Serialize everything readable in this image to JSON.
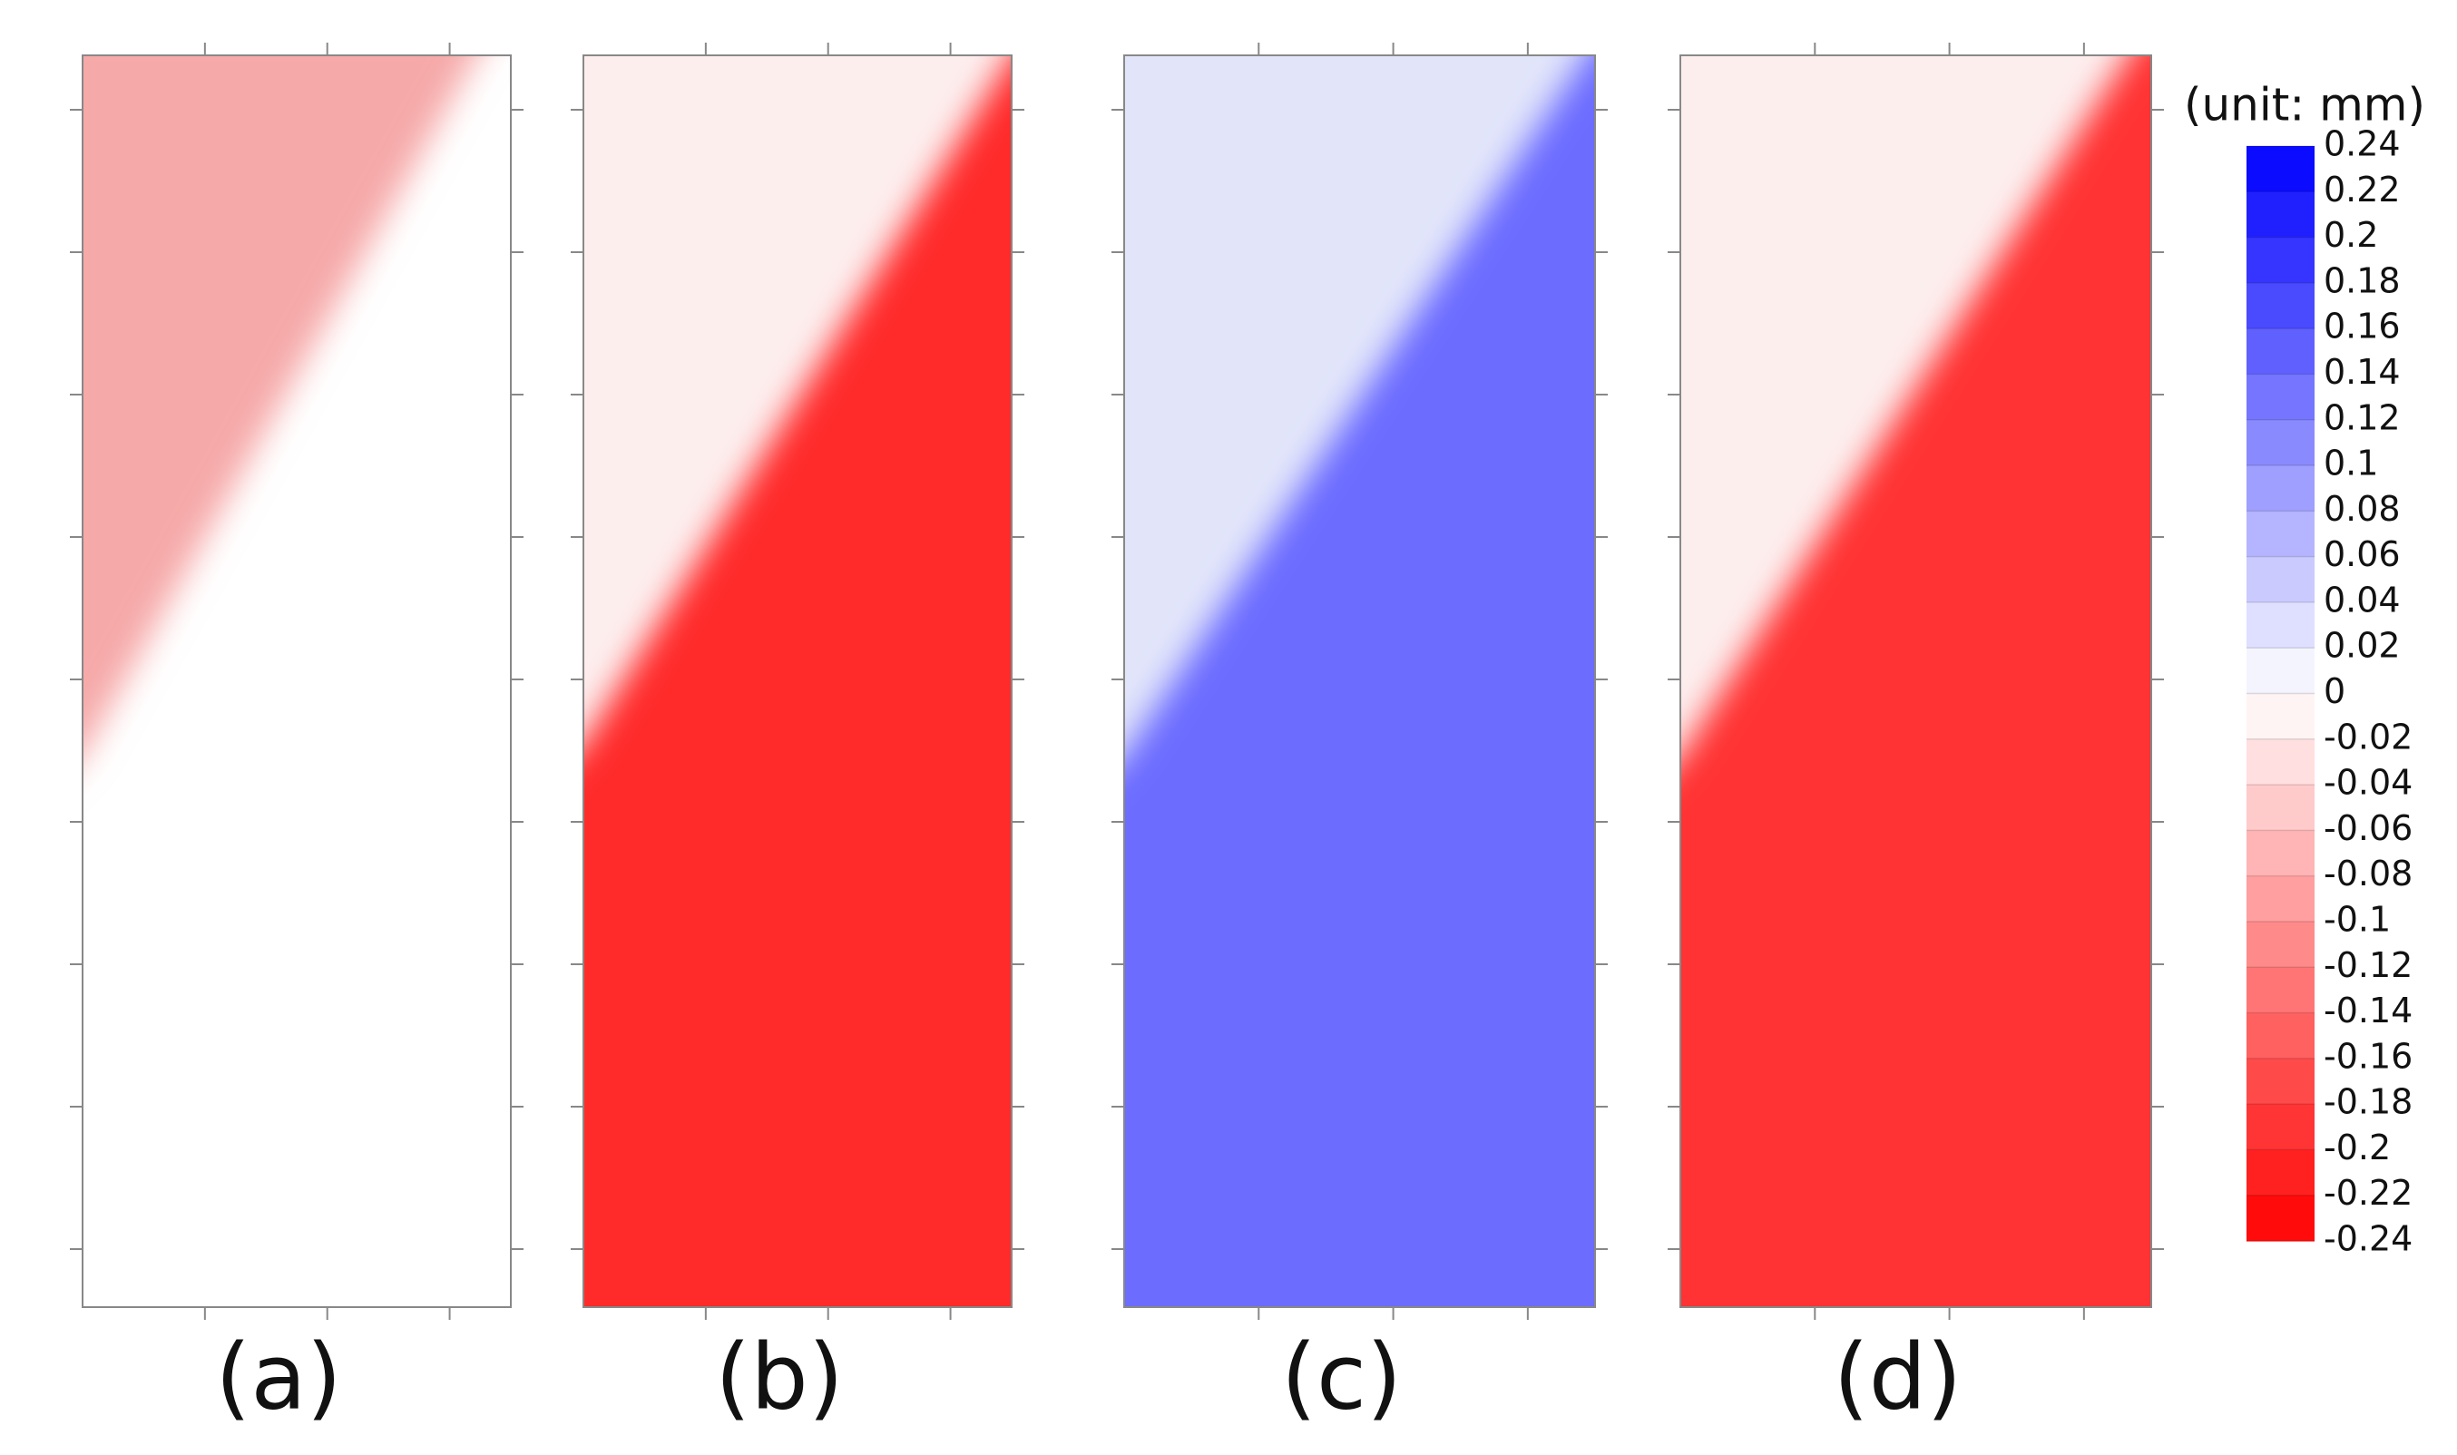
{
  "chart_data": {
    "type": "contour",
    "panels": [
      "(a)",
      "(b)",
      "(c)",
      "(d)"
    ],
    "colorbar_title": "(unit: mm)",
    "clim": [
      -0.24,
      0.24
    ],
    "colormap": [
      "#ff0000",
      "#ffffff",
      "#0000ff"
    ],
    "cticks": [
      0.24,
      0.22,
      0.2,
      0.18,
      0.16,
      0.14,
      0.12,
      0.1,
      0.08,
      0.06,
      0.04,
      0.02,
      0,
      -0.02,
      -0.04,
      -0.06,
      -0.08,
      -0.1,
      -0.12,
      -0.14,
      -0.16,
      -0.18,
      -0.2,
      -0.22,
      -0.24
    ]
  }
}
